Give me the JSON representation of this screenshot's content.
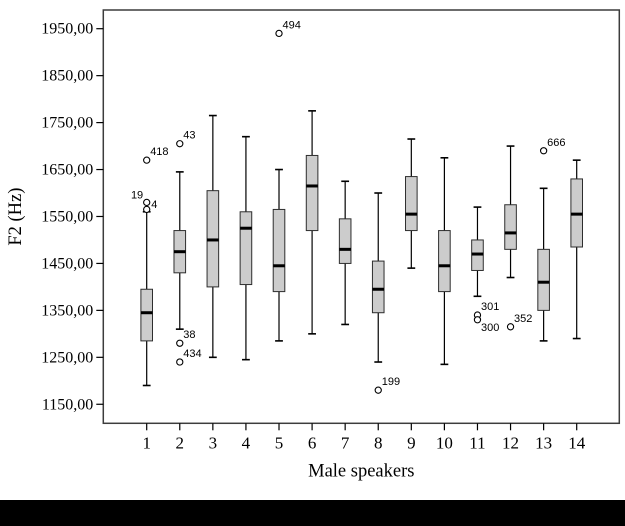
{
  "figure": {
    "background": "#ffffff",
    "bottom_bar_color": "#000000"
  },
  "chart_data": {
    "type": "boxplot",
    "title": "",
    "xlabel": "Male speakers",
    "ylabel": "F2 (Hz)",
    "categories": [
      "1",
      "2",
      "3",
      "4",
      "5",
      "6",
      "7",
      "8",
      "9",
      "10",
      "11",
      "12",
      "13",
      "14"
    ],
    "y_ticks": [
      {
        "value": 1150,
        "label": "1150,00"
      },
      {
        "value": 1250,
        "label": "1250,00"
      },
      {
        "value": 1350,
        "label": "1350,00"
      },
      {
        "value": 1450,
        "label": "1450,00"
      },
      {
        "value": 1550,
        "label": "1550,00"
      },
      {
        "value": 1650,
        "label": "1650,00"
      },
      {
        "value": 1750,
        "label": "1750,00"
      },
      {
        "value": 1850,
        "label": "1850,00"
      },
      {
        "value": 1950,
        "label": "1950,00"
      }
    ],
    "ylim": [
      1110,
      1990
    ],
    "grid": false,
    "legend": false,
    "colors": {
      "box_fill": "#cccccc",
      "box_stroke": "#2e2e2e",
      "median": "#000000",
      "whisker": "#000000",
      "frame": "#3c3c3c",
      "tick": "#000000",
      "outlier_fill": "#ffffff",
      "outlier_stroke": "#000000",
      "text": "#000000"
    },
    "boxes": [
      {
        "category": "1",
        "whisker_low": 1190,
        "q1": 1285,
        "median": 1345,
        "q3": 1395,
        "whisker_high": 1560,
        "outliers": [
          {
            "label": "4",
            "value": 1565,
            "label_side": "right"
          },
          {
            "label": "19",
            "value": 1580,
            "label_side": "above-left"
          },
          {
            "label": "418",
            "value": 1670,
            "label_side": "above-right"
          }
        ]
      },
      {
        "category": "2",
        "whisker_low": 1310,
        "q1": 1430,
        "median": 1475,
        "q3": 1520,
        "whisker_high": 1645,
        "outliers": [
          {
            "label": "43",
            "value": 1705,
            "label_side": "above-right"
          },
          {
            "label": "38",
            "value": 1280,
            "label_side": "above-right"
          },
          {
            "label": "434",
            "value": 1240,
            "label_side": "above-right"
          }
        ]
      },
      {
        "category": "3",
        "whisker_low": 1250,
        "q1": 1400,
        "median": 1500,
        "q3": 1605,
        "whisker_high": 1765,
        "outliers": []
      },
      {
        "category": "4",
        "whisker_low": 1245,
        "q1": 1405,
        "median": 1525,
        "q3": 1560,
        "whisker_high": 1720,
        "outliers": []
      },
      {
        "category": "5",
        "whisker_low": 1285,
        "q1": 1390,
        "median": 1445,
        "q3": 1565,
        "whisker_high": 1650,
        "outliers": [
          {
            "label": "494",
            "value": 1940,
            "label_side": "above-right"
          }
        ]
      },
      {
        "category": "6",
        "whisker_low": 1300,
        "q1": 1520,
        "median": 1615,
        "q3": 1680,
        "whisker_high": 1775,
        "outliers": []
      },
      {
        "category": "7",
        "whisker_low": 1320,
        "q1": 1450,
        "median": 1480,
        "q3": 1545,
        "whisker_high": 1625,
        "outliers": []
      },
      {
        "category": "8",
        "whisker_low": 1240,
        "q1": 1345,
        "median": 1395,
        "q3": 1455,
        "whisker_high": 1600,
        "outliers": [
          {
            "label": "199",
            "value": 1180,
            "label_side": "above-right"
          }
        ]
      },
      {
        "category": "9",
        "whisker_low": 1440,
        "q1": 1520,
        "median": 1555,
        "q3": 1635,
        "whisker_high": 1715,
        "outliers": []
      },
      {
        "category": "10",
        "whisker_low": 1235,
        "q1": 1390,
        "median": 1445,
        "q3": 1520,
        "whisker_high": 1675,
        "outliers": []
      },
      {
        "category": "11",
        "whisker_low": 1380,
        "q1": 1435,
        "median": 1470,
        "q3": 1500,
        "whisker_high": 1570,
        "outliers": [
          {
            "label": "301",
            "value": 1340,
            "label_side": "above-right"
          },
          {
            "label": "300",
            "value": 1330,
            "label_side": "below-right"
          }
        ]
      },
      {
        "category": "12",
        "whisker_low": 1420,
        "q1": 1480,
        "median": 1515,
        "q3": 1575,
        "whisker_high": 1700,
        "outliers": [
          {
            "label": "352",
            "value": 1315,
            "label_side": "above-right"
          }
        ]
      },
      {
        "category": "13",
        "whisker_low": 1285,
        "q1": 1350,
        "median": 1410,
        "q3": 1480,
        "whisker_high": 1610,
        "outliers": [
          {
            "label": "666",
            "value": 1690,
            "label_side": "above-right"
          }
        ]
      },
      {
        "category": "14",
        "whisker_low": 1290,
        "q1": 1485,
        "median": 1555,
        "q3": 1630,
        "whisker_high": 1670,
        "outliers": []
      }
    ]
  }
}
